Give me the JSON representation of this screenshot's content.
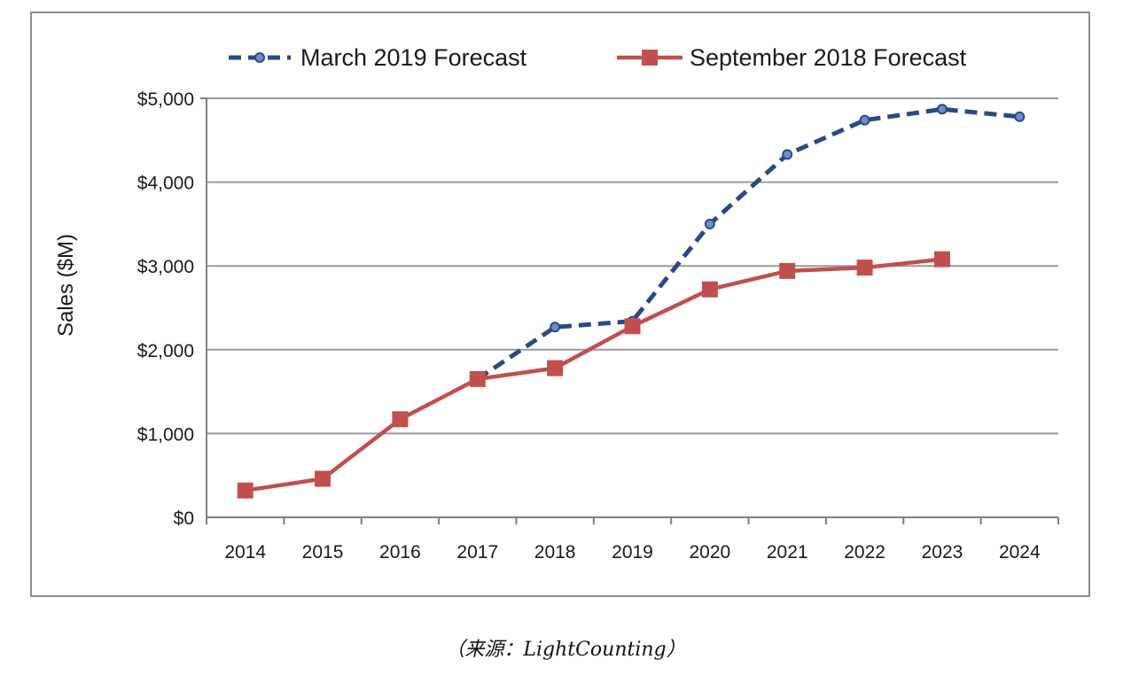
{
  "chart_data": {
    "type": "line",
    "x": [
      "2014",
      "2015",
      "2016",
      "2017",
      "2018",
      "2019",
      "2020",
      "2021",
      "2022",
      "2023",
      "2024"
    ],
    "ylabel": "Sales ($M)",
    "ylim": [
      0,
      5000
    ],
    "yticks": [
      0,
      1000,
      2000,
      3000,
      4000,
      5000
    ],
    "ytick_labels": [
      "$0",
      "$1,000",
      "$2,000",
      "$3,000",
      "$4,000",
      "$5,000"
    ],
    "grid": true,
    "legend_position": "top",
    "series": [
      {
        "name": "March 2019 Forecast",
        "color": "#2a4a86",
        "style": "dashed",
        "marker": "circle",
        "values": [
          null,
          null,
          null,
          1650,
          2270,
          2340,
          3500,
          4330,
          4740,
          4870,
          4780
        ]
      },
      {
        "name": "September 2018 Forecast",
        "color": "#c0504d",
        "style": "solid",
        "marker": "square",
        "values": [
          320,
          460,
          1170,
          1650,
          1780,
          2280,
          2720,
          2940,
          2980,
          3080,
          null
        ]
      }
    ]
  },
  "caption": "（来源：LightCounting）"
}
